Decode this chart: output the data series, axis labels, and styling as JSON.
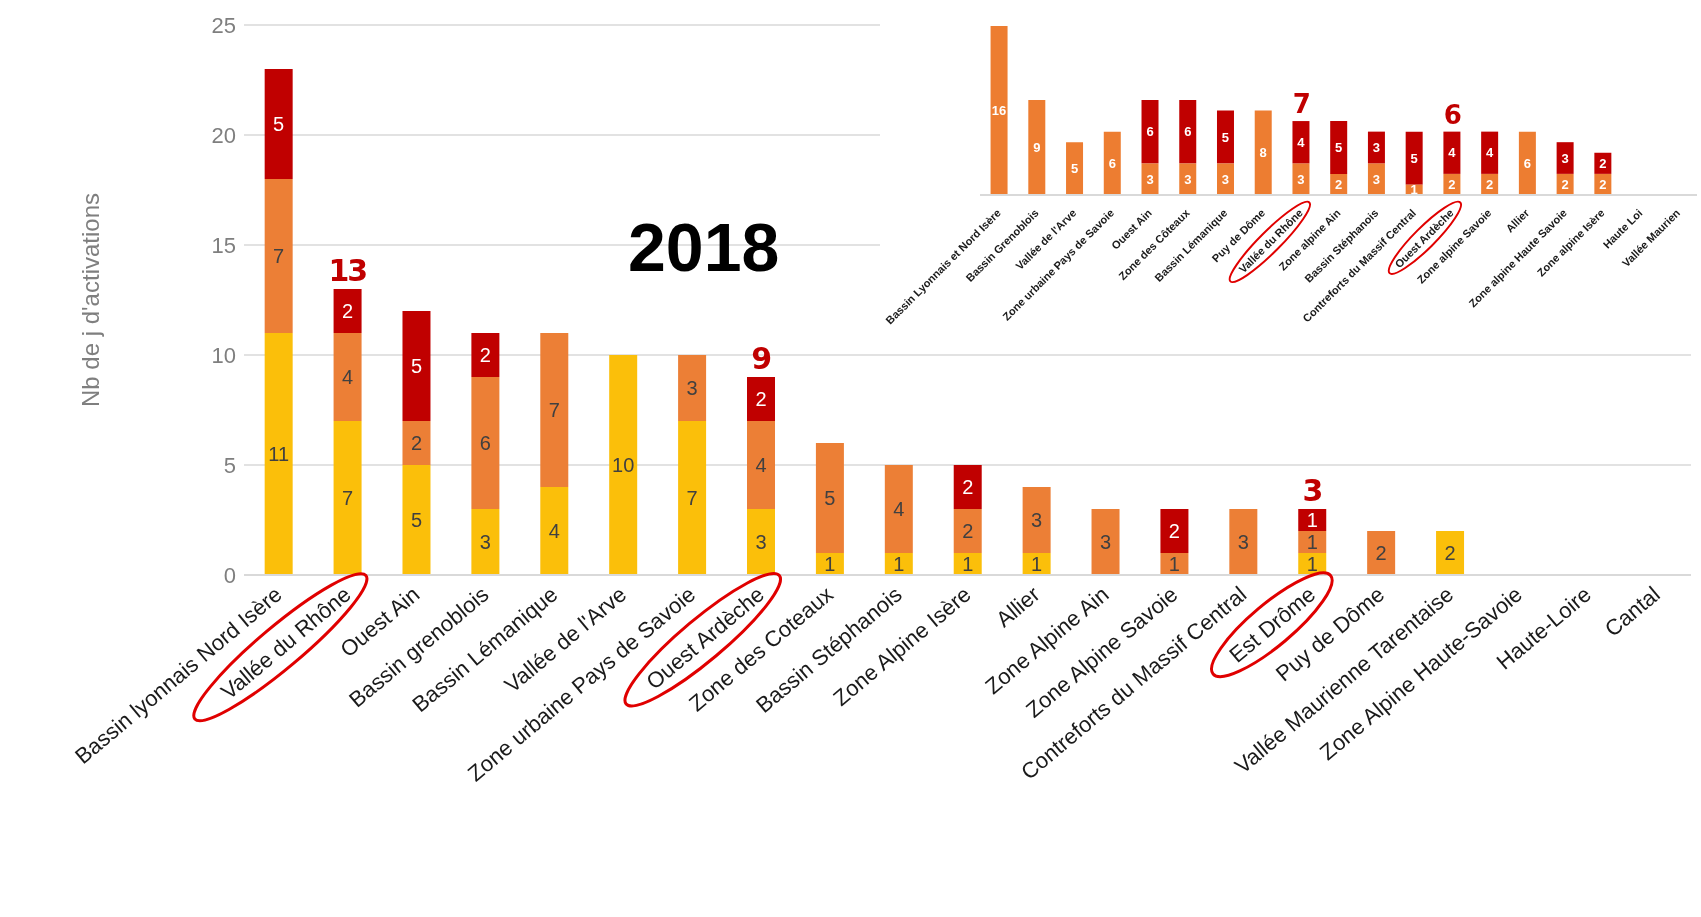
{
  "chart_data": [
    {
      "type": "bar",
      "stacked": true,
      "title": "2018",
      "ylabel": "Nb de j d'activations",
      "categories": [
        "Bassin lyonnais Nord Isère",
        "Vallée du Rhône",
        "Ouest Ain",
        "Bassin grenoblois",
        "Bassin Lémanique",
        "Vallée de l'Arve",
        "Zone urbaine Pays de Savoie",
        "Ouest Ardèche",
        "Zone des Coteaux",
        "Bassin Stéphanois",
        "Zone Alpine Isère",
        "Allier",
        "Zone Alpine Ain",
        "Zone Alpine Savoie",
        "Contreforts du Massif Central",
        "Est Drôme",
        "Puy de Dôme",
        "Vallée Maurienne Tarentaise",
        "Zone Alpine Haute-Savoie",
        "Haute-Loire",
        "Cantal"
      ],
      "series": [
        {
          "color": "#fbbf0a",
          "values": [
            11,
            7,
            5,
            3,
            4,
            10,
            7,
            3,
            1,
            1,
            1,
            1,
            null,
            null,
            null,
            1,
            null,
            2,
            null,
            null,
            null
          ]
        },
        {
          "color": "#ec7f36",
          "values": [
            7,
            4,
            2,
            6,
            7,
            null,
            3,
            4,
            5,
            4,
            2,
            3,
            3,
            1,
            3,
            1,
            2,
            null,
            null,
            null,
            null
          ]
        },
        {
          "color": "#c00000",
          "values": [
            5,
            2,
            5,
            2,
            null,
            null,
            null,
            2,
            null,
            null,
            2,
            null,
            null,
            2,
            null,
            1,
            null,
            null,
            null,
            null,
            null
          ]
        }
      ],
      "totals": [
        null,
        "13",
        null,
        null,
        null,
        null,
        null,
        "9",
        null,
        null,
        null,
        null,
        null,
        null,
        null,
        "3",
        null,
        null,
        null,
        null,
        null
      ],
      "ylim": [
        0,
        25
      ],
      "yticks": [
        0,
        5,
        10,
        15,
        20,
        25
      ],
      "grid": "y",
      "data_labels": true
    },
    {
      "type": "bar",
      "stacked": true,
      "categories": [
        "Bassin Lyonnais et Nord Isère",
        "Bassin Grenoblois",
        "Vallée de l'Arve",
        "Zone urbaine Pays de Savoie",
        "Ouest Ain",
        "Zone des Côteaux",
        "Bassin Lémanique",
        "Puy de Dôme",
        "Vallée du Rhône",
        "Zone alpine Ain",
        "Bassin Stéphanois",
        "Contreforts du Massif Central",
        "Ouest Ardèche",
        "Zone alpine Savoie",
        "Allier",
        "Zone alpine Haute Savoie",
        "Zone alpine Isère",
        "Haute Loi",
        "Vallée Maurien"
      ],
      "series": [
        {
          "color": "#ed7d31",
          "values": [
            16,
            9,
            5,
            6,
            3,
            3,
            3,
            8,
            3,
            2,
            3,
            1,
            2,
            2,
            6,
            2,
            2,
            null,
            null
          ]
        },
        {
          "color": "#c00000",
          "values": [
            null,
            null,
            null,
            null,
            6,
            6,
            5,
            null,
            4,
            5,
            3,
            5,
            4,
            4,
            null,
            3,
            2,
            null,
            null
          ]
        }
      ],
      "totals": [
        null,
        null,
        null,
        null,
        null,
        null,
        null,
        null,
        "7",
        null,
        null,
        null,
        "6",
        null,
        null,
        null,
        null,
        null,
        null
      ],
      "data_labels": true
    }
  ]
}
